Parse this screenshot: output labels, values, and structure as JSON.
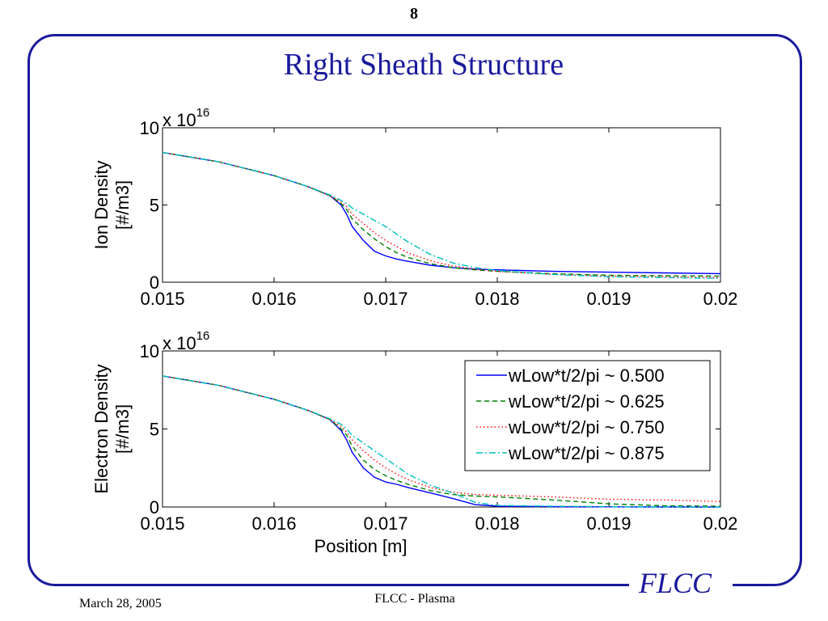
{
  "slide": {
    "page_number": "8",
    "title": "Right Sheath Structure",
    "logo_text": "FLCC",
    "footer_date": "March 28, 2005",
    "footer_center": "FLCC - Plasma"
  },
  "colors": {
    "frame": "#1a1a9c",
    "title": "#1a1a9c",
    "series": [
      "#0000ff",
      "#008000",
      "#ff0000",
      "#00bfbf"
    ]
  },
  "chart_data": [
    {
      "type": "line",
      "ylabel": [
        "Ion Density",
        "[#/m3]"
      ],
      "xlabel": "",
      "multiplier_base": "x 10",
      "multiplier_exp": "16",
      "xlim": [
        0.015,
        0.02
      ],
      "ylim": [
        0,
        10
      ],
      "xticks": [
        "0.015",
        "0.016",
        "0.017",
        "0.018",
        "0.019",
        "0.02"
      ],
      "yticks": [
        "0",
        "5",
        "10"
      ],
      "grid": false,
      "legend": null,
      "series": [
        {
          "name": "wLow*t/2/pi ~ 0.500",
          "style": "solid",
          "x": [
            0.015,
            0.0155,
            0.016,
            0.0163,
            0.0165,
            0.0166,
            0.01665,
            0.0167,
            0.0168,
            0.0169,
            0.017,
            0.0171,
            0.0172,
            0.0174,
            0.0176,
            0.0178,
            0.018,
            0.0185,
            0.019,
            0.0195,
            0.02
          ],
          "y": [
            8.4,
            7.8,
            6.9,
            6.2,
            5.6,
            5.0,
            4.4,
            3.6,
            2.7,
            2.0,
            1.7,
            1.5,
            1.35,
            1.1,
            0.95,
            0.85,
            0.8,
            0.7,
            0.65,
            0.6,
            0.55
          ]
        },
        {
          "name": "wLow*t/2/pi ~ 0.625",
          "style": "dashed",
          "x": [
            0.015,
            0.0155,
            0.016,
            0.0163,
            0.0165,
            0.0166,
            0.01665,
            0.0167,
            0.0168,
            0.0169,
            0.017,
            0.0171,
            0.0172,
            0.0174,
            0.0176,
            0.0178,
            0.018,
            0.0185,
            0.019,
            0.0195,
            0.02
          ],
          "y": [
            8.4,
            7.8,
            6.9,
            6.2,
            5.6,
            5.1,
            4.7,
            4.1,
            3.4,
            2.8,
            2.3,
            1.9,
            1.6,
            1.2,
            0.95,
            0.8,
            0.7,
            0.55,
            0.45,
            0.42,
            0.4
          ]
        },
        {
          "name": "wLow*t/2/pi ~ 0.750",
          "style": "dotted",
          "x": [
            0.015,
            0.0155,
            0.016,
            0.0163,
            0.0165,
            0.0166,
            0.01665,
            0.0167,
            0.0168,
            0.0169,
            0.017,
            0.0171,
            0.0172,
            0.0174,
            0.0176,
            0.0178,
            0.018,
            0.0185,
            0.019,
            0.0195,
            0.02
          ],
          "y": [
            8.4,
            7.8,
            6.9,
            6.2,
            5.6,
            5.2,
            4.9,
            4.4,
            3.8,
            3.2,
            2.7,
            2.3,
            1.9,
            1.4,
            1.05,
            0.85,
            0.7,
            0.5,
            0.4,
            0.35,
            0.3
          ]
        },
        {
          "name": "wLow*t/2/pi ~ 0.875",
          "style": "dashdot",
          "x": [
            0.015,
            0.0155,
            0.016,
            0.0163,
            0.0165,
            0.0166,
            0.01665,
            0.0167,
            0.0168,
            0.0169,
            0.017,
            0.0171,
            0.0172,
            0.0174,
            0.0176,
            0.0178,
            0.018,
            0.0185,
            0.019,
            0.0195,
            0.02
          ],
          "y": [
            8.4,
            7.8,
            6.9,
            6.2,
            5.65,
            5.3,
            5.1,
            4.8,
            4.4,
            4.0,
            3.6,
            3.1,
            2.6,
            1.8,
            1.25,
            0.95,
            0.75,
            0.5,
            0.35,
            0.3,
            0.25
          ]
        }
      ]
    },
    {
      "type": "line",
      "ylabel": [
        "Electron Density",
        "[#/m3]"
      ],
      "xlabel": "Position [m]",
      "multiplier_base": "x 10",
      "multiplier_exp": "16",
      "xlim": [
        0.015,
        0.02
      ],
      "ylim": [
        0,
        10
      ],
      "xticks": [
        "0.015",
        "0.016",
        "0.017",
        "0.018",
        "0.019",
        "0.02"
      ],
      "yticks": [
        "0",
        "5",
        "10"
      ],
      "grid": false,
      "legend": "top-right",
      "series": [
        {
          "name": "wLow*t/2/pi ~ 0.500",
          "style": "solid",
          "x": [
            0.015,
            0.0155,
            0.016,
            0.0163,
            0.0165,
            0.0166,
            0.01665,
            0.0167,
            0.0168,
            0.0169,
            0.017,
            0.0171,
            0.0172,
            0.0174,
            0.0176,
            0.0178,
            0.018,
            0.0185,
            0.019,
            0.0195,
            0.02
          ],
          "y": [
            8.4,
            7.8,
            6.9,
            6.2,
            5.6,
            4.9,
            4.3,
            3.5,
            2.5,
            1.9,
            1.6,
            1.45,
            1.25,
            0.9,
            0.55,
            0.15,
            0.05,
            0.02,
            0.01,
            0.0,
            0.0
          ]
        },
        {
          "name": "wLow*t/2/pi ~ 0.625",
          "style": "dashed",
          "x": [
            0.015,
            0.0155,
            0.016,
            0.0163,
            0.0165,
            0.0166,
            0.01665,
            0.0167,
            0.0168,
            0.0169,
            0.017,
            0.0171,
            0.0172,
            0.0174,
            0.0176,
            0.0178,
            0.018,
            0.0185,
            0.019,
            0.0195,
            0.02
          ],
          "y": [
            8.4,
            7.8,
            6.9,
            6.2,
            5.6,
            5.0,
            4.6,
            3.9,
            3.0,
            2.4,
            2.0,
            1.7,
            1.45,
            1.05,
            0.8,
            0.7,
            0.65,
            0.45,
            0.2,
            0.08,
            0.05
          ]
        },
        {
          "name": "wLow*t/2/pi ~ 0.750",
          "style": "dotted",
          "x": [
            0.015,
            0.0155,
            0.016,
            0.0163,
            0.0165,
            0.0166,
            0.01665,
            0.0167,
            0.0168,
            0.0169,
            0.017,
            0.0171,
            0.0172,
            0.0174,
            0.0176,
            0.0178,
            0.018,
            0.0185,
            0.019,
            0.0195,
            0.02
          ],
          "y": [
            8.4,
            7.8,
            6.9,
            6.2,
            5.6,
            5.15,
            4.8,
            4.3,
            3.6,
            3.0,
            2.5,
            2.1,
            1.75,
            1.25,
            0.95,
            0.8,
            0.75,
            0.65,
            0.5,
            0.45,
            0.35
          ]
        },
        {
          "name": "wLow*t/2/pi ~ 0.875",
          "style": "dashdot",
          "x": [
            0.015,
            0.0155,
            0.016,
            0.0163,
            0.0165,
            0.0166,
            0.01665,
            0.0167,
            0.0168,
            0.0169,
            0.017,
            0.0171,
            0.0172,
            0.0174,
            0.0176,
            0.0178,
            0.018,
            0.0185,
            0.019,
            0.0195,
            0.02
          ],
          "y": [
            8.4,
            7.8,
            6.9,
            6.2,
            5.65,
            5.3,
            5.0,
            4.6,
            4.1,
            3.6,
            3.1,
            2.6,
            2.1,
            1.4,
            0.9,
            0.3,
            0.1,
            0.05,
            0.02,
            0.01,
            0.0
          ]
        }
      ]
    }
  ]
}
